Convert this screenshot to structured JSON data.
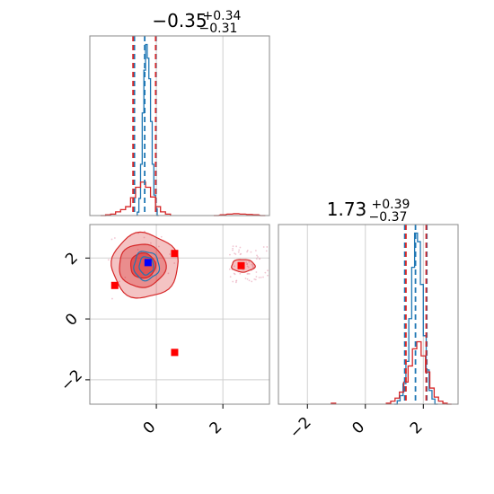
{
  "chart_data": [
    {
      "type": "histogram",
      "panel": "marginal-param-1",
      "title": {
        "median": "−0.35",
        "upper": "+0.34",
        "lower": "−0.31"
      },
      "xlim": [
        -2.0,
        3.4
      ],
      "grid": true,
      "series": [
        {
          "name": "",
          "color": "#1f77b4",
          "style": "step",
          "x": [
            -0.55,
            -0.5,
            -0.45,
            -0.4,
            -0.35,
            -0.3,
            -0.25,
            -0.2,
            -0.15,
            -0.1,
            -0.05,
            0.0,
            0.05
          ],
          "values": [
            0.02,
            0.1,
            0.3,
            0.6,
            0.85,
            1.0,
            0.92,
            0.8,
            0.55,
            0.3,
            0.12,
            0.04,
            0.0
          ],
          "quantiles": [
            -0.66,
            -0.35,
            -0.01
          ]
        },
        {
          "name": "",
          "color": "#d62728",
          "style": "step",
          "x": [
            -1.6,
            -1.45,
            -1.3,
            -1.15,
            -1.0,
            -0.85,
            -0.7,
            -0.55,
            -0.4,
            -0.25,
            -0.1,
            0.05,
            0.2,
            0.35,
            1.8,
            2.0,
            2.2,
            2.4,
            2.6,
            2.8,
            3.0,
            3.2
          ],
          "values": [
            0.0,
            0.01,
            0.02,
            0.05,
            0.08,
            0.12,
            0.24,
            0.38,
            0.45,
            0.38,
            0.25,
            0.12,
            0.05,
            0.02,
            0.0,
            0.01,
            0.02,
            0.025,
            0.02,
            0.015,
            0.01,
            0.0
          ],
          "quantiles": [
            -0.7,
            -0.02
          ]
        }
      ]
    },
    {
      "type": "contour",
      "panel": "joint-param-1-param-2",
      "xlim": [
        -2.0,
        3.4
      ],
      "ylim": [
        -2.8,
        3.1
      ],
      "xticks": [
        "0",
        "2"
      ],
      "yticks": [
        "−2",
        "0",
        "2"
      ],
      "grid": true,
      "series": [
        {
          "name": "",
          "color": "#d62728",
          "type": "filled-contour",
          "center": [
            -0.35,
            1.75
          ],
          "levels": [
            0.3,
            0.6,
            0.95
          ]
        },
        {
          "name": "",
          "color": "#d62728",
          "type": "filled-contour",
          "center": [
            2.55,
            1.75
          ],
          "levels": [
            0.95
          ]
        },
        {
          "name": "",
          "color": "#1f77b4",
          "type": "contour",
          "center": [
            -0.3,
            1.75
          ],
          "levels": [
            0.5,
            0.9
          ]
        }
      ],
      "markers": [
        {
          "name": "",
          "color": "#ff0000",
          "shape": "square",
          "points": [
            [
              0.55,
              2.15
            ],
            [
              -1.25,
              1.1
            ],
            [
              2.55,
              1.75
            ],
            [
              0.55,
              -1.1
            ]
          ]
        },
        {
          "name": "",
          "color": "#0000ff",
          "shape": "square",
          "points": [
            [
              -0.25,
              1.85
            ]
          ]
        }
      ]
    },
    {
      "type": "histogram",
      "panel": "marginal-param-2",
      "title": {
        "median": "1.73",
        "upper": "+0.39",
        "lower": "−0.37"
      },
      "xlim": [
        -3.0,
        3.2
      ],
      "xticks": [
        "−2",
        "0",
        "2"
      ],
      "grid": true,
      "series": [
        {
          "name": "",
          "color": "#1f77b4",
          "style": "step",
          "x": [
            1.05,
            1.15,
            1.25,
            1.35,
            1.45,
            1.55,
            1.65,
            1.75,
            1.85,
            1.95,
            2.05,
            2.15,
            2.25,
            2.35,
            2.45
          ],
          "values": [
            0.0,
            0.02,
            0.05,
            0.12,
            0.25,
            0.5,
            0.8,
            1.0,
            0.95,
            0.7,
            0.4,
            0.2,
            0.08,
            0.03,
            0.0
          ],
          "quantiles": [
            1.36,
            1.73,
            2.12
          ]
        },
        {
          "name": "",
          "color": "#d62728",
          "style": "step",
          "x": [
            -1.1,
            0.8,
            0.95,
            1.1,
            1.25,
            1.4,
            1.55,
            1.7,
            1.85,
            2.0,
            2.15,
            2.3,
            2.45,
            2.6,
            2.75,
            2.9
          ],
          "values": [
            0.01,
            0.01,
            0.03,
            0.06,
            0.12,
            0.22,
            0.38,
            0.55,
            0.62,
            0.48,
            0.32,
            0.16,
            0.07,
            0.03,
            0.01,
            0.0
          ],
          "quantiles": [
            1.4,
            2.1
          ]
        }
      ]
    }
  ]
}
